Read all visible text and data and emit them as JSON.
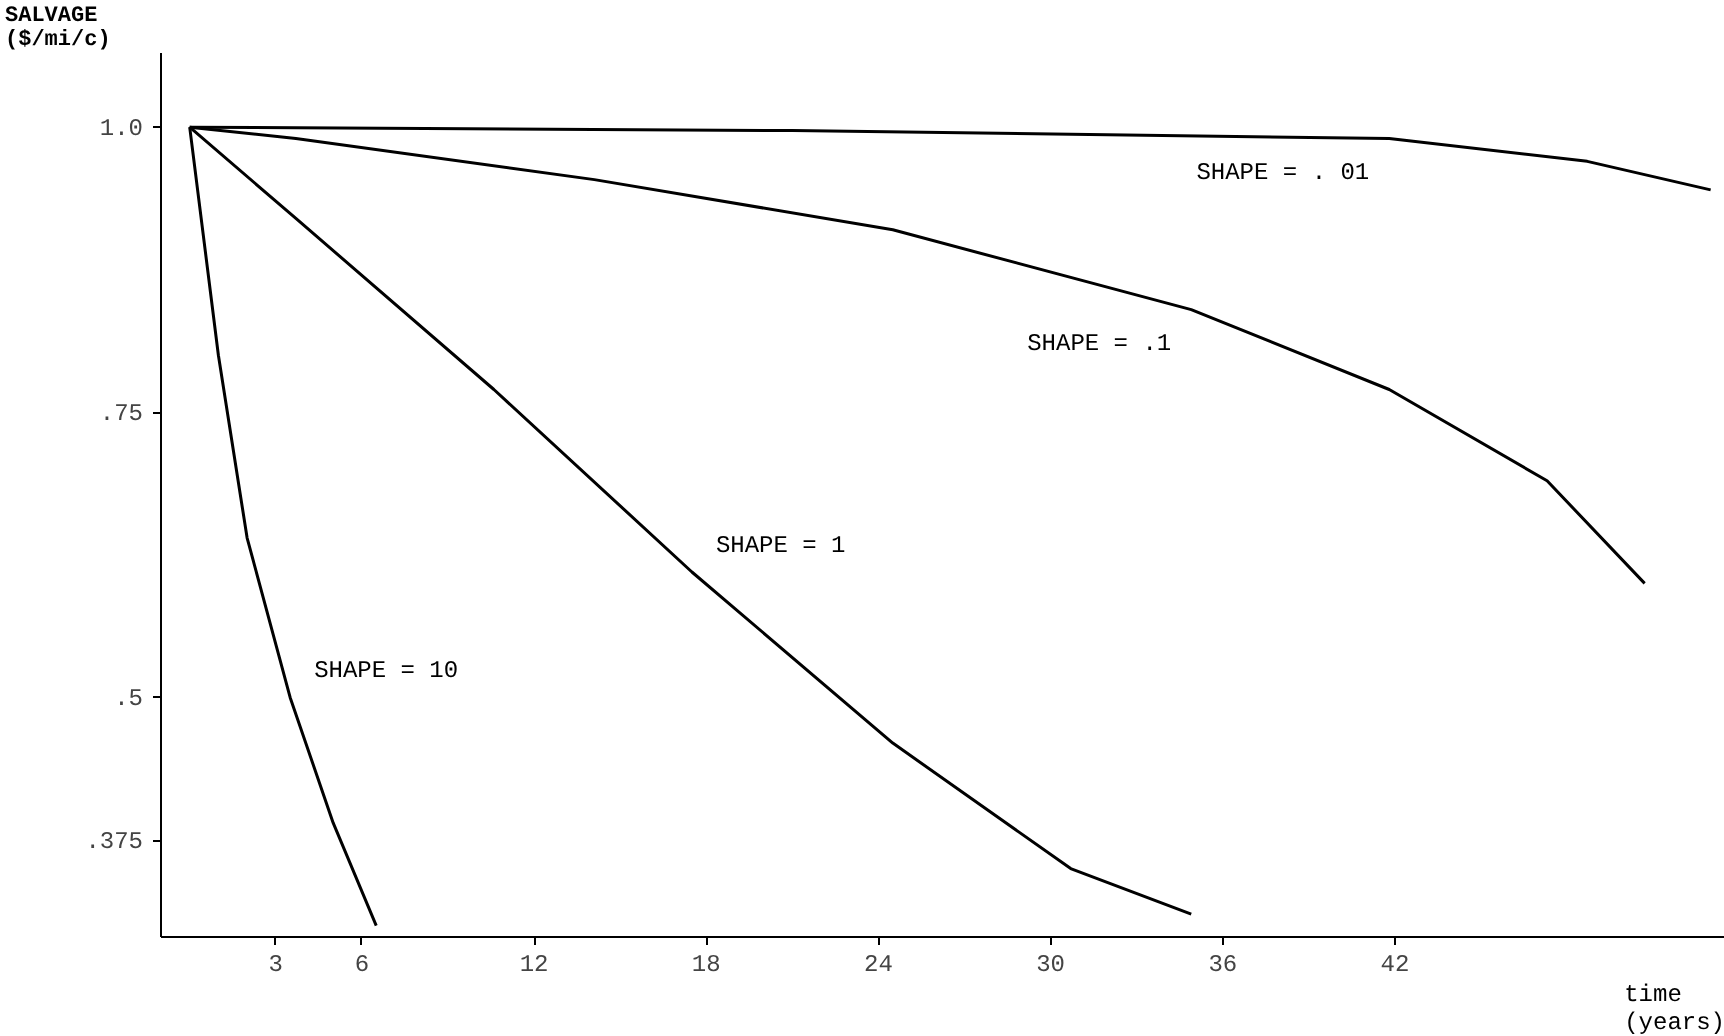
{
  "chart_data": {
    "type": "line",
    "ylabel": "SALVAGE\n($/mi/c)",
    "xlabel": "time\n(years)",
    "xlim": [
      -1,
      53.5
    ],
    "ylim": [
      0.29,
      1.065
    ],
    "xticks": [
      3,
      6,
      12,
      18,
      24,
      30,
      36,
      42
    ],
    "yticks": [
      {
        "value": 1,
        "label": "1.0"
      },
      {
        "value": 0.75,
        "label": ".75"
      },
      {
        "value": 0.5,
        "label": ".5"
      },
      {
        "value": 0.375,
        "label": ".375"
      }
    ],
    "grid": false,
    "legend": false,
    "marker": "none",
    "line_style": "solid",
    "series": [
      {
        "name": "SHAPE = 10",
        "color": "#000000",
        "x": [
          0,
          1,
          2,
          3.5,
          5,
          6.5
        ],
        "values": [
          1.0,
          0.8,
          0.64,
          0.5,
          0.39,
          0.3
        ]
      },
      {
        "name": "SHAPE = 1",
        "color": "#000000",
        "x": [
          0,
          3.7,
          10.6,
          17.5,
          24.5,
          30.7,
          34.9
        ],
        "values": [
          1.0,
          0.92,
          0.77,
          0.61,
          0.46,
          0.35,
          0.31
        ]
      },
      {
        "name": "SHAPE = .1",
        "color": "#000000",
        "x": [
          0,
          3.7,
          14.1,
          24.5,
          34.9,
          41.8,
          47.3,
          50.7
        ],
        "values": [
          1.0,
          0.99,
          0.954,
          0.91,
          0.84,
          0.77,
          0.69,
          0.6
        ]
      },
      {
        "name": "SHAPE = . 01",
        "color": "#000000",
        "x": [
          0,
          21,
          41.8,
          48.7,
          53
        ],
        "values": [
          1.0,
          0.997,
          0.99,
          0.97,
          0.945
        ]
      }
    ]
  }
}
